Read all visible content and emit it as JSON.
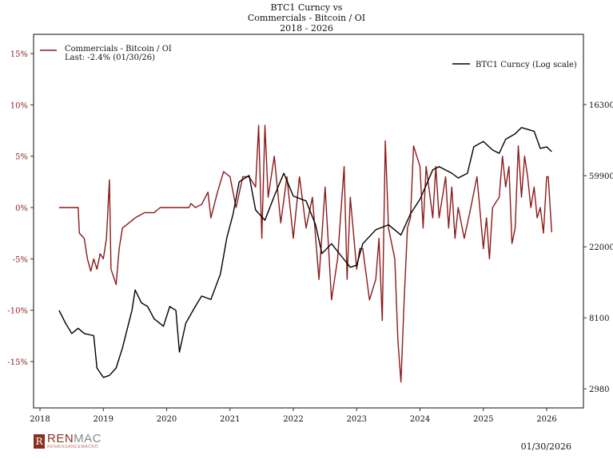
{
  "chart_data": {
    "type": "line",
    "title": [
      "BTC1 Curncy vs",
      "Commercials - Bitcoin / OI",
      "2018 - 2026"
    ],
    "x_ticks": [
      "2018",
      "2019",
      "2020",
      "2021",
      "2022",
      "2023",
      "2024",
      "2025",
      "2026"
    ],
    "y_left": {
      "ticks": [
        "15%",
        "10%",
        "5%",
        "0%",
        "-5%",
        "-10%",
        "-15%"
      ],
      "tick_values": [
        15,
        10,
        5,
        0,
        -5,
        -10,
        -15
      ],
      "range": [
        -19,
        16.9
      ],
      "color": "#8b1a1a"
    },
    "y_right": {
      "scale": "log",
      "ticks": [
        "163000",
        "59900",
        "22000",
        "8100",
        "2980"
      ],
      "tick_values": [
        163000,
        59900,
        22000,
        8100,
        2980
      ],
      "color": "#111111"
    },
    "legend": [
      {
        "label": "Commercials - Bitcoin / OI",
        "sublabel": "Last: -2.4% (01/30/26)",
        "color": "#8b1a1a",
        "placement": "top-left"
      },
      {
        "label": "BTC1 Curncy (Log scale)",
        "color": "#000000",
        "placement": "top-right"
      }
    ],
    "series": [
      {
        "name": "Commercials - Bitcoin / OI",
        "axis": "left",
        "color": "#8b1a1a",
        "points": [
          [
            "2018-04-20",
            0
          ],
          [
            "2018-08-08",
            0
          ],
          [
            "2018-08-15",
            -2.5
          ],
          [
            "2018-09-13",
            -3
          ],
          [
            "2018-10-01",
            -5
          ],
          [
            "2018-10-20",
            -6.2
          ],
          [
            "2018-11-07",
            -5
          ],
          [
            "2018-11-25",
            -6
          ],
          [
            "2018-12-13",
            -4.5
          ],
          [
            "2019-01-01",
            -5
          ],
          [
            "2019-01-19",
            -3
          ],
          [
            "2019-02-06",
            2.7
          ],
          [
            "2019-02-15",
            -6
          ],
          [
            "2019-03-14",
            -7.5
          ],
          [
            "2019-04-01",
            -4
          ],
          [
            "2019-04-20",
            -2
          ],
          [
            "2019-05-27",
            -1.5
          ],
          [
            "2019-07-02",
            -1
          ],
          [
            "2019-08-26",
            -0.5
          ],
          [
            "2019-10-20",
            -0.5
          ],
          [
            "2019-11-25",
            0
          ],
          [
            "2020-05-08",
            0
          ],
          [
            "2020-05-20",
            0.4
          ],
          [
            "2020-06-14",
            0
          ],
          [
            "2020-07-20",
            0.3
          ],
          [
            "2020-08-26",
            1.5
          ],
          [
            "2020-09-13",
            -1
          ],
          [
            "2020-10-20",
            1.5
          ],
          [
            "2020-11-25",
            3.5
          ],
          [
            "2021-01-01",
            3
          ],
          [
            "2021-02-06",
            0
          ],
          [
            "2021-03-14",
            3
          ],
          [
            "2021-04-20",
            3
          ],
          [
            "2021-05-27",
            2
          ],
          [
            "2021-06-14",
            8
          ],
          [
            "2021-07-02",
            -3
          ],
          [
            "2021-07-20",
            8
          ],
          [
            "2021-08-08",
            1
          ],
          [
            "2021-09-13",
            5
          ],
          [
            "2021-10-20",
            -1.5
          ],
          [
            "2021-11-25",
            3
          ],
          [
            "2022-01-01",
            -3
          ],
          [
            "2022-02-06",
            3
          ],
          [
            "2022-03-14",
            -2
          ],
          [
            "2022-04-20",
            1
          ],
          [
            "2022-05-27",
            -7
          ],
          [
            "2022-07-02",
            2
          ],
          [
            "2022-08-08",
            -9
          ],
          [
            "2022-09-13",
            -5
          ],
          [
            "2022-10-20",
            4
          ],
          [
            "2022-11-07",
            -7
          ],
          [
            "2022-11-25",
            1
          ],
          [
            "2023-01-01",
            -6
          ],
          [
            "2023-01-19",
            -4
          ],
          [
            "2023-02-06",
            -4
          ],
          [
            "2023-03-14",
            -9
          ],
          [
            "2023-04-20",
            -7
          ],
          [
            "2023-05-08",
            -3
          ],
          [
            "2023-05-27",
            -11
          ],
          [
            "2023-06-14",
            6.5
          ],
          [
            "2023-07-02",
            -2
          ],
          [
            "2023-08-08",
            -5
          ],
          [
            "2023-08-26",
            -13
          ],
          [
            "2023-09-13",
            -17
          ],
          [
            "2023-10-01",
            -9
          ],
          [
            "2023-10-20",
            -2
          ],
          [
            "2023-11-07",
            -1
          ],
          [
            "2023-11-25",
            6
          ],
          [
            "2024-01-01",
            4
          ],
          [
            "2024-01-19",
            -2
          ],
          [
            "2024-02-06",
            4
          ],
          [
            "2024-03-14",
            -1
          ],
          [
            "2024-04-01",
            4
          ],
          [
            "2024-04-20",
            -1
          ],
          [
            "2024-05-27",
            3
          ],
          [
            "2024-06-14",
            -2
          ],
          [
            "2024-07-02",
            2
          ],
          [
            "2024-07-20",
            -3
          ],
          [
            "2024-08-08",
            0
          ],
          [
            "2024-09-13",
            -3
          ],
          [
            "2024-10-20",
            0
          ],
          [
            "2024-11-25",
            3
          ],
          [
            "2025-01-01",
            -4
          ],
          [
            "2025-01-19",
            -1
          ],
          [
            "2025-02-06",
            -5
          ],
          [
            "2025-02-24",
            0
          ],
          [
            "2025-04-01",
            1
          ],
          [
            "2025-04-20",
            5
          ],
          [
            "2025-05-08",
            2
          ],
          [
            "2025-05-27",
            4
          ],
          [
            "2025-06-14",
            -3.5
          ],
          [
            "2025-07-02",
            -2
          ],
          [
            "2025-07-20",
            6
          ],
          [
            "2025-08-08",
            1
          ],
          [
            "2025-08-26",
            5
          ],
          [
            "2025-09-13",
            3
          ],
          [
            "2025-10-01",
            0
          ],
          [
            "2025-10-20",
            2
          ],
          [
            "2025-11-07",
            -1
          ],
          [
            "2025-11-25",
            0
          ],
          [
            "2025-12-13",
            -2.5
          ],
          [
            "2026-01-01",
            3
          ],
          [
            "2026-01-10",
            3
          ],
          [
            "2026-01-30",
            -2.4
          ]
        ]
      },
      {
        "name": "BTC1 Curncy (Log scale)",
        "axis": "right",
        "color": "#000000",
        "points": [
          [
            "2018-04-20",
            9000
          ],
          [
            "2018-05-27",
            7500
          ],
          [
            "2018-07-02",
            6500
          ],
          [
            "2018-08-08",
            7000
          ],
          [
            "2018-09-13",
            6500
          ],
          [
            "2018-11-07",
            6300
          ],
          [
            "2018-11-25",
            4000
          ],
          [
            "2019-01-01",
            3500
          ],
          [
            "2019-02-06",
            3600
          ],
          [
            "2019-03-14",
            4000
          ],
          [
            "2019-04-20",
            5300
          ],
          [
            "2019-06-14",
            9000
          ],
          [
            "2019-07-02",
            12000
          ],
          [
            "2019-08-08",
            10000
          ],
          [
            "2019-09-13",
            9500
          ],
          [
            "2019-10-20",
            8000
          ],
          [
            "2019-12-13",
            7200
          ],
          [
            "2020-01-19",
            9500
          ],
          [
            "2020-02-24",
            9000
          ],
          [
            "2020-03-14",
            5000
          ],
          [
            "2020-04-20",
            7500
          ],
          [
            "2020-06-14",
            9500
          ],
          [
            "2020-07-20",
            11000
          ],
          [
            "2020-09-13",
            10500
          ],
          [
            "2020-11-07",
            15000
          ],
          [
            "2020-12-13",
            25000
          ],
          [
            "2021-01-19",
            35000
          ],
          [
            "2021-02-24",
            55000
          ],
          [
            "2021-04-20",
            60000
          ],
          [
            "2021-05-27",
            37000
          ],
          [
            "2021-07-20",
            32000
          ],
          [
            "2021-09-13",
            45000
          ],
          [
            "2021-11-07",
            62000
          ],
          [
            "2022-01-01",
            45000
          ],
          [
            "2022-03-14",
            42000
          ],
          [
            "2022-05-08",
            30000
          ],
          [
            "2022-06-14",
            20000
          ],
          [
            "2022-08-08",
            23000
          ],
          [
            "2022-10-01",
            19500
          ],
          [
            "2022-11-25",
            16500
          ],
          [
            "2023-01-01",
            17000
          ],
          [
            "2023-02-06",
            23000
          ],
          [
            "2023-04-20",
            28000
          ],
          [
            "2023-07-02",
            30000
          ],
          [
            "2023-09-13",
            26000
          ],
          [
            "2023-11-07",
            35000
          ],
          [
            "2024-01-01",
            43000
          ],
          [
            "2024-03-14",
            65000
          ],
          [
            "2024-04-20",
            68000
          ],
          [
            "2024-07-02",
            62000
          ],
          [
            "2024-08-08",
            58000
          ],
          [
            "2024-10-01",
            62000
          ],
          [
            "2024-11-07",
            90000
          ],
          [
            "2025-01-01",
            97000
          ],
          [
            "2025-02-24",
            86000
          ],
          [
            "2025-04-01",
            82000
          ],
          [
            "2025-05-08",
            100000
          ],
          [
            "2025-07-02",
            108000
          ],
          [
            "2025-08-08",
            118000
          ],
          [
            "2025-10-20",
            112000
          ],
          [
            "2025-11-25",
            88000
          ],
          [
            "2026-01-01",
            90000
          ],
          [
            "2026-01-30",
            84000
          ]
        ]
      }
    ]
  },
  "footer": {
    "logo_text": "RENMAC",
    "logo_sub": "RENAISSANCEMACRO",
    "date": "01/30/2026"
  }
}
